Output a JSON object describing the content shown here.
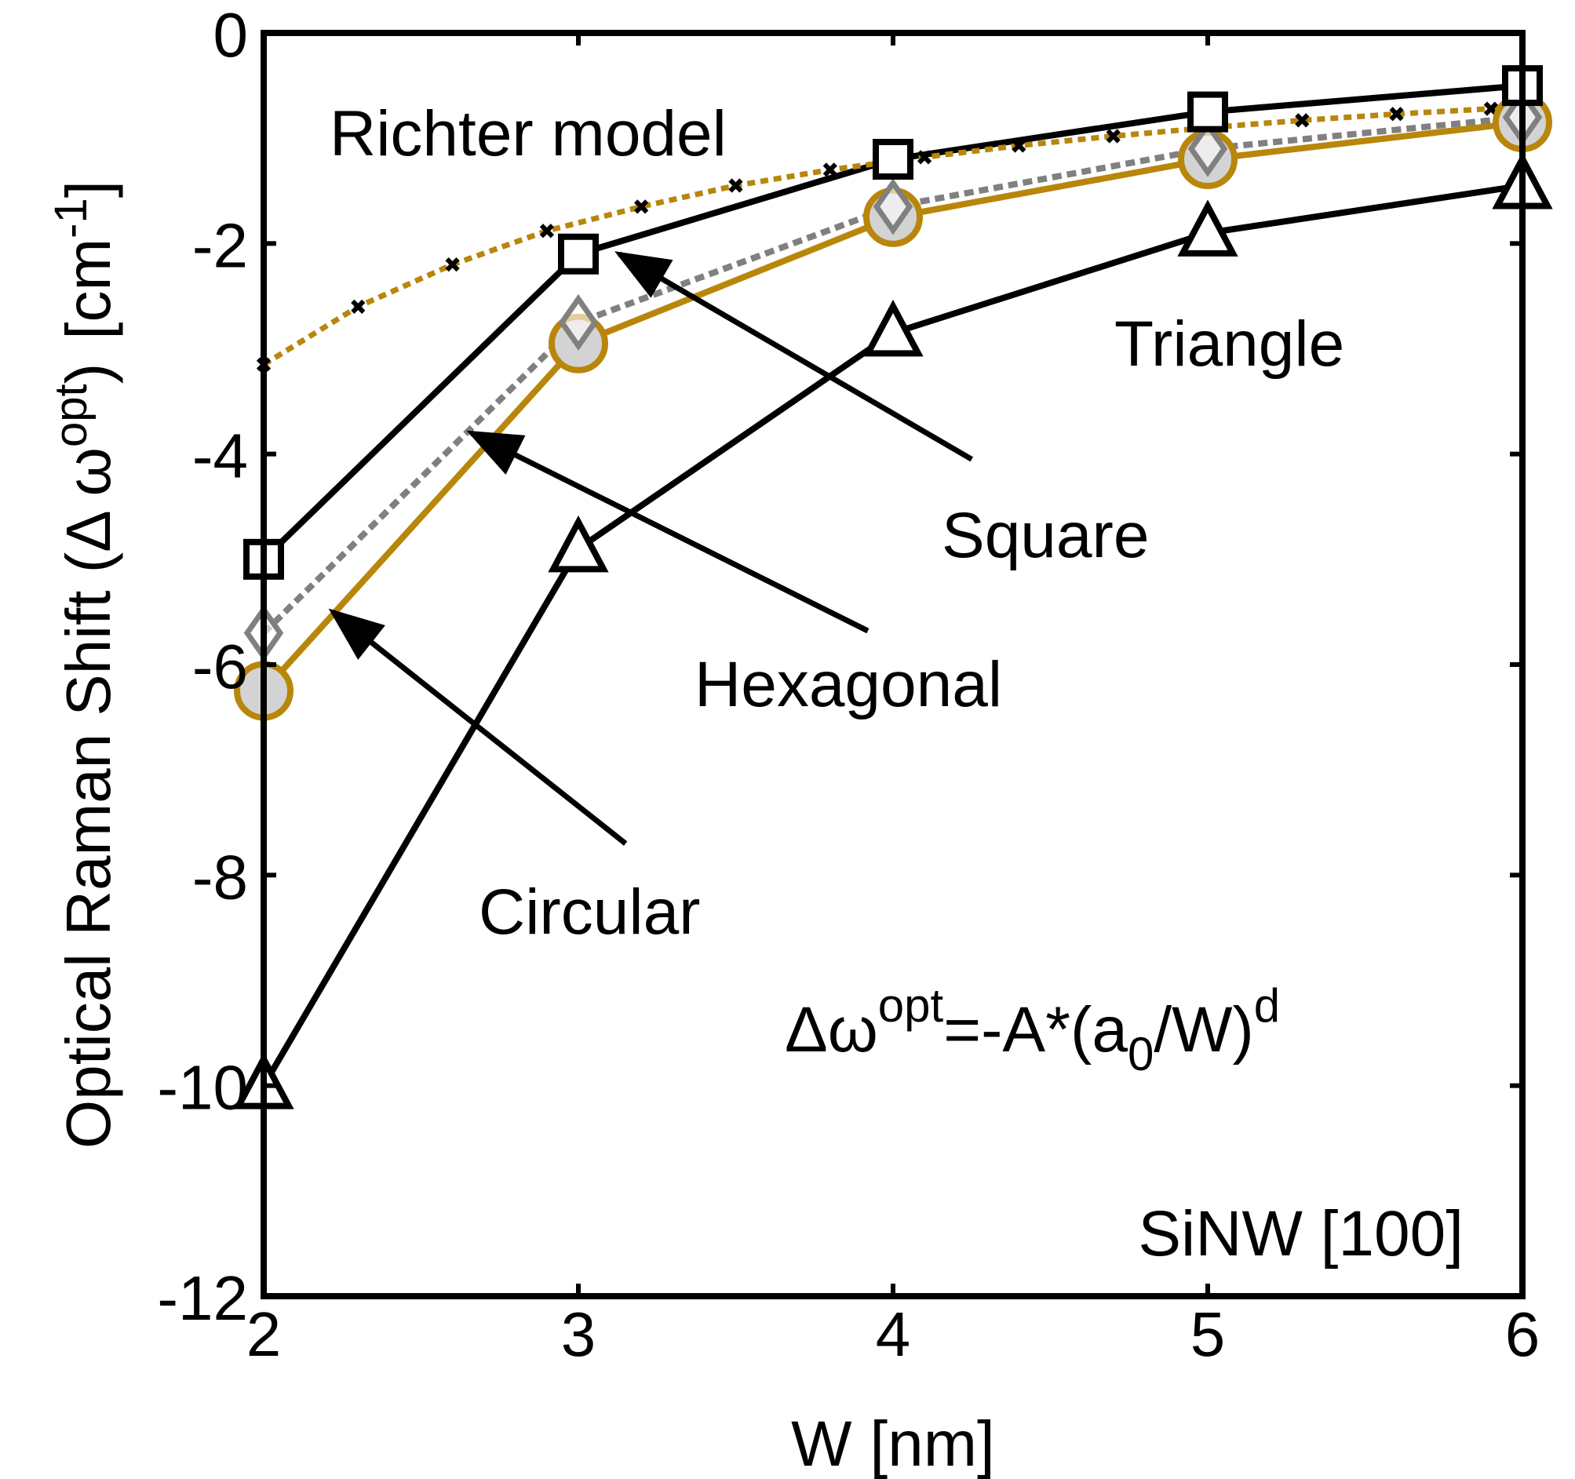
{
  "chart_data": {
    "type": "line",
    "xlabel": "W [nm]",
    "ylabel": {
      "main": "Optical Raman Shift (Δ ω",
      "sup": "opt",
      "close": ")",
      "unit_open": "[cm",
      "unit_sup": "-1",
      "unit_close": "]"
    },
    "xlim": [
      2,
      6
    ],
    "ylim": [
      -12,
      0
    ],
    "xticks": [
      2,
      3,
      4,
      5,
      6
    ],
    "yticks": [
      0,
      -2,
      -4,
      -6,
      -8,
      -10,
      -12
    ],
    "x": [
      2,
      3,
      4,
      5,
      6
    ],
    "series": [
      {
        "name": "Square",
        "marker": "square",
        "line": "solid",
        "color": "#000000",
        "values": [
          -5.0,
          -2.1,
          -1.2,
          -0.75,
          -0.5
        ]
      },
      {
        "name": "Hexagonal",
        "marker": "diamond",
        "line": "dotted",
        "color": "#808080",
        "values": [
          -5.7,
          -2.75,
          -1.65,
          -1.1,
          -0.8
        ]
      },
      {
        "name": "Circular",
        "marker": "circle",
        "line": "solid",
        "color": "#B8860B",
        "fill": "#D3D3D3",
        "values": [
          -6.25,
          -2.95,
          -1.75,
          -1.2,
          -0.85
        ]
      },
      {
        "name": "Triangle",
        "marker": "triangle",
        "line": "solid",
        "color": "#000000",
        "values": [
          -10.0,
          -4.9,
          -2.85,
          -1.9,
          -1.45
        ]
      }
    ],
    "richter": {
      "name": "Richter model",
      "line": "dotted",
      "color": "#B8860B",
      "marker_color": "#000000",
      "x": [
        2.0,
        2.3,
        2.6,
        2.9,
        3.2,
        3.5,
        3.8,
        4.1,
        4.4,
        4.7,
        5.0,
        5.3,
        5.6,
        5.9,
        6.0
      ],
      "values": [
        -3.15,
        -2.6,
        -2.2,
        -1.88,
        -1.65,
        -1.45,
        -1.3,
        -1.18,
        -1.07,
        -0.98,
        -0.9,
        -0.83,
        -0.77,
        -0.72,
        -0.7
      ]
    },
    "annotations": {
      "richter_label": "Richter model",
      "triangle_label": "Triangle",
      "square_label": "Square",
      "hexagonal_label": "Hexagonal",
      "circular_label": "Circular",
      "formula": {
        "main": "Δω",
        "sup1": "opt",
        "mid": "=-A*(a",
        "sub": "0",
        "end": "/W)",
        "sup2": "d"
      },
      "sample": "SiNW [100]"
    },
    "arrows": [
      {
        "label": "Square",
        "from": [
          4.25,
          -4.05
        ],
        "to": [
          3.13,
          -2.1
        ]
      },
      {
        "label": "Hexagonal",
        "from": [
          3.92,
          -5.68
        ],
        "to": [
          2.66,
          -3.8
        ]
      },
      {
        "label": "Circular",
        "from": [
          3.15,
          -7.7
        ],
        "to": [
          2.22,
          -5.5
        ]
      }
    ],
    "grid": false
  }
}
